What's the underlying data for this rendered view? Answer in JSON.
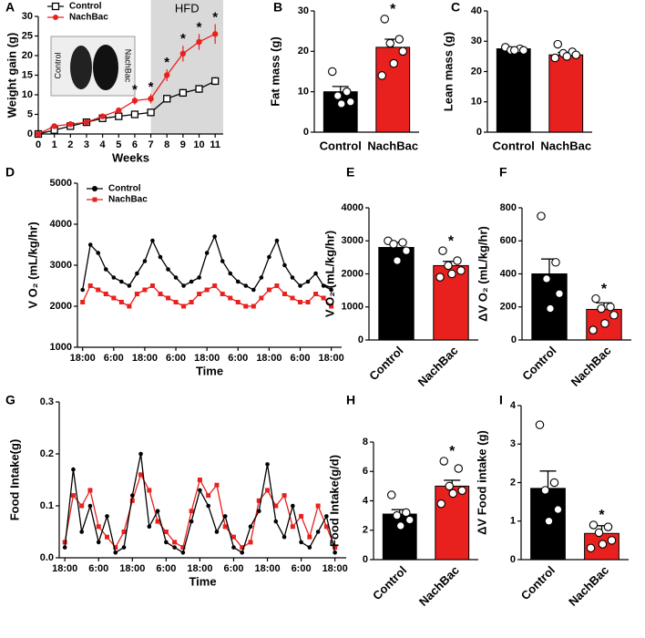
{
  "chart_data": [
    {
      "type": "line",
      "panel": "A",
      "xlabel": "Weeks",
      "ylabel": "Weight gain (g)",
      "x": [
        0,
        1,
        2,
        3,
        4,
        5,
        6,
        7,
        8,
        9,
        10,
        11
      ],
      "xlim": [
        0,
        11.5
      ],
      "xticks": [
        0,
        1,
        2,
        3,
        4,
        5,
        6,
        7,
        8,
        9,
        10,
        11
      ],
      "ylim": [
        0,
        30
      ],
      "yticks": [
        0,
        5,
        10,
        15,
        20,
        25,
        30
      ],
      "legend": "upper-left",
      "shade": {
        "from": 7,
        "label": "HFD"
      },
      "inset_labels": [
        "Control",
        "NachBac"
      ],
      "series": [
        {
          "name": "Control",
          "color": "#000000",
          "marker": "square-open",
          "values": [
            0,
            1,
            2,
            3,
            4,
            4.5,
            5,
            5.5,
            9,
            10.5,
            11.5,
            13.5
          ],
          "errors": [
            0,
            0.3,
            0.3,
            0.4,
            0.5,
            0.5,
            0.6,
            0.6,
            1,
            1,
            1,
            1
          ]
        },
        {
          "name": "NachBac",
          "color": "#e8201e",
          "marker": "circle",
          "values": [
            0,
            2,
            2.5,
            3,
            4.5,
            6,
            8.5,
            9,
            15,
            20.5,
            23.5,
            25.5
          ],
          "errors": [
            0,
            0.5,
            0.5,
            0.5,
            0.7,
            0.8,
            1,
            1.2,
            1.5,
            2,
            2,
            2.5
          ]
        }
      ],
      "annotations": [
        {
          "text": "*",
          "x": 6
        },
        {
          "text": "*",
          "x": 7
        },
        {
          "text": "*",
          "x": 8
        },
        {
          "text": "*",
          "x": 9
        },
        {
          "text": "*",
          "x": 10
        },
        {
          "text": "*",
          "x": 11
        }
      ]
    },
    {
      "type": "bar",
      "panel": "B",
      "ylabel": "Fat mass (g)",
      "categories": [
        "Control",
        "NachBac"
      ],
      "colors": [
        "#000000",
        "#e8201e"
      ],
      "values": [
        10,
        21
      ],
      "errors": [
        1.3,
        2
      ],
      "points": [
        [
          15,
          10,
          9,
          7.5,
          7
        ],
        [
          28,
          23,
          22,
          20,
          17,
          14
        ]
      ],
      "ylim": [
        0,
        30
      ],
      "yticks": [
        0,
        10,
        20,
        30
      ],
      "annotation": {
        "text": "*",
        "category": "NachBac"
      }
    },
    {
      "type": "bar",
      "panel": "C",
      "ylabel": "Lean mass (g)",
      "categories": [
        "Control",
        "NachBac"
      ],
      "colors": [
        "#000000",
        "#e8201e"
      ],
      "values": [
        27.5,
        25.5
      ],
      "errors": [
        0.4,
        0.8
      ],
      "points": [
        [
          28,
          27.5,
          27,
          27,
          27
        ],
        [
          29,
          26.5,
          26,
          25.5,
          25,
          24.5
        ]
      ],
      "ylim": [
        0,
        40
      ],
      "yticks": [
        0,
        10,
        20,
        30,
        40
      ]
    },
    {
      "type": "line",
      "panel": "D",
      "xlabel": "Time",
      "ylabel": "V O₂ (mL/kg/hr)",
      "x": [
        0,
        3,
        6,
        9,
        12,
        15,
        18,
        21,
        24,
        27,
        30,
        33,
        36,
        39,
        42,
        45,
        48,
        51,
        54,
        57,
        60,
        63,
        66,
        69,
        72,
        75,
        78,
        81,
        84,
        87,
        90,
        93,
        96
      ],
      "xlim": [
        -2,
        100
      ],
      "xticks": [
        {
          "value": 0,
          "label": "18:00"
        },
        {
          "value": 12,
          "label": "6:00"
        },
        {
          "value": 24,
          "label": "18:00"
        },
        {
          "value": 36,
          "label": "6:00"
        },
        {
          "value": 48,
          "label": "18:00"
        },
        {
          "value": 60,
          "label": "6:00"
        },
        {
          "value": 72,
          "label": "18:00"
        },
        {
          "value": 84,
          "label": "6:00"
        },
        {
          "value": 96,
          "label": "18:00"
        }
      ],
      "ylim": [
        1000,
        5000
      ],
      "yticks": [
        1000,
        2000,
        3000,
        4000,
        5000
      ],
      "legend": "upper-left",
      "series": [
        {
          "name": "Control",
          "color": "#000000",
          "marker": "circle",
          "values": [
            2400,
            3500,
            3300,
            2900,
            2700,
            2600,
            2500,
            2800,
            3100,
            3600,
            3200,
            2900,
            2700,
            2500,
            2600,
            2700,
            3300,
            3700,
            3100,
            2800,
            2600,
            2500,
            2400,
            2700,
            3200,
            3600,
            3000,
            2700,
            2500,
            2600,
            2800,
            2500,
            2400
          ]
        },
        {
          "name": "NachBac",
          "color": "#e8201e",
          "marker": "square",
          "values": [
            2100,
            2500,
            2400,
            2300,
            2200,
            2100,
            2000,
            2300,
            2400,
            2500,
            2300,
            2200,
            2100,
            2000,
            2100,
            2300,
            2400,
            2500,
            2300,
            2200,
            2100,
            2000,
            2000,
            2200,
            2400,
            2500,
            2300,
            2200,
            2100,
            2100,
            2300,
            2200,
            2000
          ]
        }
      ]
    },
    {
      "type": "bar",
      "panel": "E",
      "ylabel": "V O₂ (mL/kg/hr)",
      "categories": [
        "Control",
        "NachBac"
      ],
      "colors": [
        "#000000",
        "#e8201e"
      ],
      "xtick_rotation": 45,
      "values": [
        2800,
        2250
      ],
      "errors": [
        150,
        130
      ],
      "points": [
        [
          3000,
          2950,
          2900,
          2700,
          2400
        ],
        [
          2700,
          2400,
          2250,
          2100,
          2000,
          1900
        ]
      ],
      "ylim": [
        0,
        4000
      ],
      "yticks": [
        0,
        1000,
        2000,
        3000,
        4000
      ],
      "annotation": {
        "text": "*",
        "category": "NachBac"
      }
    },
    {
      "type": "bar",
      "panel": "F",
      "ylabel": "ΔV O₂ (mL/kg/hr)",
      "categories": [
        "Control",
        "NachBac"
      ],
      "colors": [
        "#000000",
        "#e8201e"
      ],
      "xtick_rotation": 45,
      "values": [
        400,
        185
      ],
      "errors": [
        90,
        40
      ],
      "points": [
        [
          750,
          470,
          370,
          280,
          190
        ],
        [
          250,
          200,
          190,
          150,
          100,
          60
        ]
      ],
      "ylim": [
        0,
        800
      ],
      "yticks": [
        0,
        200,
        400,
        600,
        800
      ],
      "annotation": {
        "text": "*",
        "category": "NachBac"
      }
    },
    {
      "type": "line",
      "panel": "G",
      "xlabel": "Time",
      "ylabel": "Food Intake(g)",
      "x": [
        0,
        3,
        6,
        9,
        12,
        15,
        18,
        21,
        24,
        27,
        30,
        33,
        36,
        39,
        42,
        45,
        48,
        51,
        54,
        57,
        60,
        63,
        66,
        69,
        72,
        75,
        78,
        81,
        84,
        87,
        90,
        93,
        96
      ],
      "xlim": [
        -2,
        100
      ],
      "xticks": [
        {
          "value": 0,
          "label": "18:00"
        },
        {
          "value": 12,
          "label": "6:00"
        },
        {
          "value": 24,
          "label": "18:00"
        },
        {
          "value": 36,
          "label": "6:00"
        },
        {
          "value": 48,
          "label": "18:00"
        },
        {
          "value": 60,
          "label": "6:00"
        },
        {
          "value": 72,
          "label": "18:00"
        },
        {
          "value": 84,
          "label": "6:00"
        },
        {
          "value": 96,
          "label": "18:00"
        }
      ],
      "ylim": [
        0,
        0.3
      ],
      "yticks": [
        {
          "value": 0,
          "label": "0.0"
        },
        0.1,
        0.2,
        0.3
      ],
      "series": [
        {
          "name": "NachBac",
          "color": "#e8201e",
          "marker": "square",
          "values": [
            0.03,
            0.12,
            0.1,
            0.13,
            0.06,
            0.04,
            0.02,
            0.05,
            0.11,
            0.16,
            0.13,
            0.07,
            0.05,
            0.03,
            0.02,
            0.09,
            0.15,
            0.12,
            0.14,
            0.06,
            0.04,
            0.02,
            0.03,
            0.11,
            0.13,
            0.1,
            0.12,
            0.06,
            0.08,
            0.04,
            0.1,
            0.06,
            0.02
          ]
        },
        {
          "name": "Control",
          "color": "#000000",
          "marker": "circle",
          "values": [
            0.02,
            0.17,
            0.05,
            0.1,
            0.03,
            0.08,
            0.01,
            0.02,
            0.12,
            0.2,
            0.06,
            0.09,
            0.03,
            0.02,
            0.01,
            0.07,
            0.13,
            0.1,
            0.05,
            0.08,
            0.02,
            0.01,
            0.06,
            0.09,
            0.18,
            0.07,
            0.04,
            0.1,
            0.03,
            0.02,
            0.05,
            0.08,
            0.01
          ]
        }
      ]
    },
    {
      "type": "bar",
      "panel": "H",
      "ylabel": "Food Intake(g/d)",
      "categories": [
        "Control",
        "NachBac"
      ],
      "colors": [
        "#000000",
        "#e8201e"
      ],
      "xtick_rotation": 45,
      "values": [
        3.1,
        5.0
      ],
      "errors": [
        0.3,
        0.4
      ],
      "points": [
        [
          4.4,
          3.2,
          3.0,
          2.7,
          2.3
        ],
        [
          6.7,
          6.2,
          5.0,
          4.7,
          4.5,
          3.8
        ]
      ],
      "ylim": [
        0,
        8
      ],
      "yticks": [
        0,
        2,
        4,
        6,
        8
      ],
      "annotation": {
        "text": "*",
        "category": "NachBac"
      }
    },
    {
      "type": "bar",
      "panel": "I",
      "ylabel": "ΔV Food intake (g)",
      "categories": [
        "Control",
        "NachBac"
      ],
      "colors": [
        "#000000",
        "#e8201e"
      ],
      "xtick_rotation": 45,
      "values": [
        1.85,
        0.68
      ],
      "errors": [
        0.45,
        0.2
      ],
      "points": [
        [
          3.5,
          2.0,
          1.8,
          1.3,
          1.0
        ],
        [
          0.9,
          0.85,
          0.7,
          0.5,
          0.4,
          0.3
        ]
      ],
      "ylim": [
        0,
        4
      ],
      "yticks": [
        0,
        1,
        2,
        3,
        4
      ],
      "annotation": {
        "text": "*",
        "category": "NachBac"
      }
    }
  ]
}
